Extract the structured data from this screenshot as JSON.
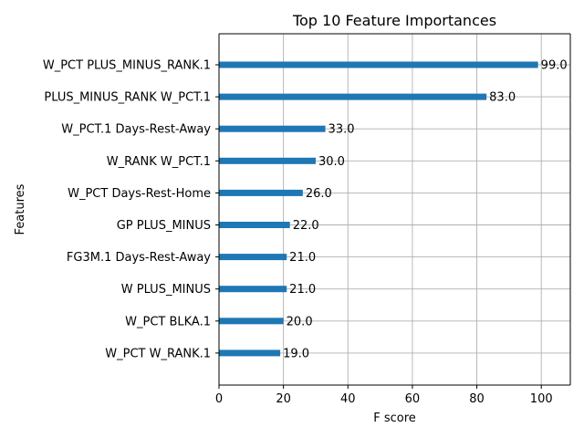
{
  "chart_data": {
    "type": "bar",
    "orientation": "horizontal",
    "title": "Top 10 Feature Importances",
    "xlabel": "F score",
    "ylabel": "Features",
    "xlim": [
      0,
      109
    ],
    "xticks": [
      0,
      20,
      40,
      60,
      80,
      100
    ],
    "grid": true,
    "bar_color": "#1f77b4",
    "categories": [
      "W_PCT PLUS_MINUS_RANK.1",
      "PLUS_MINUS_RANK W_PCT.1",
      "W_PCT.1 Days-Rest-Away",
      "W_RANK W_PCT.1",
      "W_PCT Days-Rest-Home",
      "GP PLUS_MINUS",
      "FG3M.1 Days-Rest-Away",
      "W PLUS_MINUS",
      "W_PCT BLKA.1",
      "W_PCT W_RANK.1"
    ],
    "values": [
      99,
      83,
      33,
      30,
      26,
      22,
      21,
      21,
      20,
      19
    ],
    "value_labels": [
      "99.0",
      "83.0",
      "33.0",
      "30.0",
      "26.0",
      "22.0",
      "21.0",
      "21.0",
      "20.0",
      "19.0"
    ]
  }
}
